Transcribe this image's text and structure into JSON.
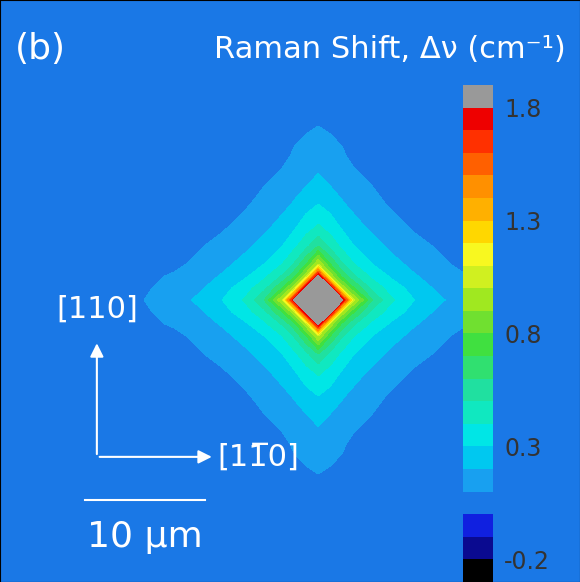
{
  "chart_data": {
    "type": "contour",
    "panel_label": "(b)",
    "directions": {
      "up": "[110]",
      "right": "[11̅0]"
    },
    "scale_bar": {
      "length": 10,
      "label": "10 μm"
    },
    "tick_labels": false,
    "xlim": [
      0,
      48.3
    ],
    "ylim": [
      0,
      48.5
    ],
    "x": [
      0,
      10.5,
      14.5,
      16.5,
      18.5,
      20.5,
      22,
      23.5,
      24.5,
      25.5,
      26.5,
      27.5,
      28.5,
      29.5,
      31,
      32.5,
      34.5,
      36.5,
      38.5,
      42.5,
      48.3
    ],
    "y": [
      0,
      7.5,
      11.5,
      13.5,
      15.5,
      17.5,
      19,
      20.5,
      21.5,
      22.5,
      23.5,
      24.5,
      25.5,
      26.5,
      28,
      29.5,
      31.5,
      33.5,
      35.5,
      39.5,
      48.5
    ],
    "z": [
      [
        0.03,
        0.03,
        0.03,
        0.03,
        0.03,
        0.03,
        0.03,
        0.03,
        0.03,
        0.03,
        0.03,
        0.03,
        0.03,
        0.03,
        0.03,
        0.03,
        0.03,
        0.03,
        0.03,
        0.03,
        0.03
      ],
      [
        0.03,
        0.03,
        0.03,
        0.03,
        0.035,
        0.035,
        0.045,
        0.05,
        0.06,
        0.065,
        0.07,
        0.065,
        0.06,
        0.05,
        0.045,
        0.035,
        0.035,
        0.03,
        0.03,
        0.03,
        0.03
      ],
      [
        0.03,
        0.03,
        0.035,
        0.04,
        0.045,
        0.056,
        0.065,
        0.08,
        0.11,
        0.13,
        0.15,
        0.13,
        0.11,
        0.08,
        0.065,
        0.056,
        0.045,
        0.04,
        0.035,
        0.03,
        0.03
      ],
      [
        0.03,
        0.03,
        0.04,
        0.04,
        0.055,
        0.066,
        0.09,
        0.12,
        0.15,
        0.18,
        0.22,
        0.18,
        0.15,
        0.12,
        0.09,
        0.066,
        0.055,
        0.04,
        0.04,
        0.03,
        0.03
      ],
      [
        0.03,
        0.035,
        0.045,
        0.055,
        0.065,
        0.09,
        0.13,
        0.17,
        0.21,
        0.26,
        0.3,
        0.26,
        0.21,
        0.17,
        0.13,
        0.09,
        0.065,
        0.055,
        0.045,
        0.035,
        0.03
      ],
      [
        0.03,
        0.035,
        0.056,
        0.066,
        0.09,
        0.14,
        0.18,
        0.24,
        0.29,
        0.36,
        0.42,
        0.36,
        0.29,
        0.24,
        0.18,
        0.14,
        0.09,
        0.066,
        0.056,
        0.035,
        0.03
      ],
      [
        0.03,
        0.045,
        0.065,
        0.09,
        0.13,
        0.18,
        0.24,
        0.3,
        0.375,
        0.47,
        0.6,
        0.47,
        0.375,
        0.3,
        0.24,
        0.18,
        0.13,
        0.09,
        0.065,
        0.045,
        0.03
      ],
      [
        0.03,
        0.05,
        0.08,
        0.12,
        0.17,
        0.24,
        0.3,
        0.4,
        0.51,
        0.7,
        1.0,
        0.7,
        0.51,
        0.4,
        0.3,
        0.24,
        0.17,
        0.12,
        0.08,
        0.05,
        0.03
      ],
      [
        0.03,
        0.06,
        0.11,
        0.15,
        0.21,
        0.29,
        0.375,
        0.51,
        0.67,
        0.97,
        1.85,
        0.97,
        0.67,
        0.51,
        0.375,
        0.29,
        0.21,
        0.15,
        0.11,
        0.06,
        0.03
      ],
      [
        0.03,
        0.065,
        0.13,
        0.18,
        0.26,
        0.36,
        0.47,
        0.7,
        0.97,
        1.9,
        1.9,
        1.9,
        0.97,
        0.7,
        0.47,
        0.36,
        0.26,
        0.18,
        0.13,
        0.065,
        0.03
      ],
      [
        0.03,
        0.07,
        0.15,
        0.22,
        0.3,
        0.42,
        0.6,
        1.0,
        1.85,
        1.9,
        1.9,
        1.9,
        1.85,
        1.0,
        0.6,
        0.42,
        0.3,
        0.22,
        0.15,
        0.07,
        0.03
      ],
      [
        0.03,
        0.065,
        0.13,
        0.18,
        0.26,
        0.36,
        0.47,
        0.7,
        0.97,
        1.9,
        1.9,
        1.9,
        0.97,
        0.7,
        0.47,
        0.36,
        0.26,
        0.18,
        0.13,
        0.065,
        0.03
      ],
      [
        0.03,
        0.06,
        0.11,
        0.15,
        0.21,
        0.29,
        0.375,
        0.51,
        0.67,
        0.97,
        1.85,
        0.97,
        0.67,
        0.51,
        0.375,
        0.29,
        0.21,
        0.15,
        0.11,
        0.06,
        0.03
      ],
      [
        0.03,
        0.05,
        0.08,
        0.12,
        0.17,
        0.24,
        0.3,
        0.4,
        0.51,
        0.7,
        1.0,
        0.7,
        0.51,
        0.4,
        0.3,
        0.24,
        0.17,
        0.12,
        0.08,
        0.05,
        0.03
      ],
      [
        0.03,
        0.045,
        0.065,
        0.09,
        0.13,
        0.18,
        0.24,
        0.3,
        0.375,
        0.47,
        0.6,
        0.47,
        0.375,
        0.3,
        0.24,
        0.18,
        0.13,
        0.09,
        0.065,
        0.045,
        0.03
      ],
      [
        0.03,
        0.035,
        0.056,
        0.066,
        0.09,
        0.14,
        0.18,
        0.24,
        0.29,
        0.36,
        0.42,
        0.36,
        0.29,
        0.24,
        0.18,
        0.14,
        0.09,
        0.066,
        0.056,
        0.035,
        0.03
      ],
      [
        0.03,
        0.035,
        0.045,
        0.055,
        0.065,
        0.09,
        0.13,
        0.17,
        0.21,
        0.26,
        0.3,
        0.26,
        0.21,
        0.17,
        0.13,
        0.09,
        0.065,
        0.055,
        0.045,
        0.035,
        0.03
      ],
      [
        0.03,
        0.03,
        0.04,
        0.04,
        0.055,
        0.066,
        0.09,
        0.12,
        0.15,
        0.18,
        0.22,
        0.18,
        0.15,
        0.12,
        0.09,
        0.066,
        0.055,
        0.04,
        0.04,
        0.03,
        0.03
      ],
      [
        0.03,
        0.03,
        0.035,
        0.04,
        0.045,
        0.056,
        0.065,
        0.08,
        0.11,
        0.13,
        0.15,
        0.13,
        0.11,
        0.08,
        0.065,
        0.056,
        0.045,
        0.04,
        0.035,
        0.03,
        0.03
      ],
      [
        0.03,
        0.03,
        0.03,
        0.03,
        0.035,
        0.035,
        0.045,
        0.05,
        0.06,
        0.065,
        0.07,
        0.065,
        0.06,
        0.05,
        0.045,
        0.035,
        0.035,
        0.03,
        0.03,
        0.03,
        0.03
      ],
      [
        0.03,
        0.03,
        0.03,
        0.03,
        0.03,
        0.03,
        0.03,
        0.03,
        0.03,
        0.03,
        0.03,
        0.03,
        0.03,
        0.03,
        0.03,
        0.03,
        0.03,
        0.03,
        0.03,
        0.03,
        0.03
      ]
    ],
    "colorbar": {
      "label": "Raman Shift, Δν (cm⁻¹)",
      "levels": [
        -0.3,
        -0.2,
        -0.1,
        0.0,
        0.1,
        0.2,
        0.3,
        0.4,
        0.5,
        0.6,
        0.7,
        0.8,
        0.9,
        1.0,
        1.1,
        1.2,
        1.3,
        1.4,
        1.5,
        1.6,
        1.7,
        1.8,
        1.9
      ],
      "ticks": [
        -0.2,
        0.3,
        0.8,
        1.3,
        1.8
      ]
    }
  }
}
